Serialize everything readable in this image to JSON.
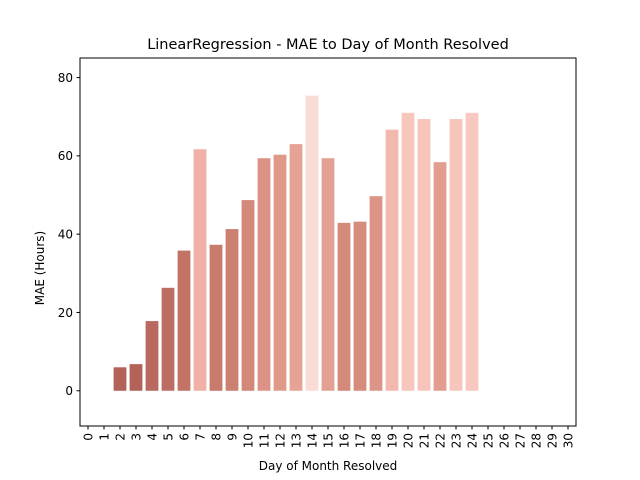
{
  "chart_data": {
    "type": "bar",
    "title": "LinearRegression - MAE to Day of Month Resolved",
    "xlabel": "Day of Month Resolved",
    "ylabel": "MAE (Hours)",
    "xlim": [
      -0.5,
      30.5
    ],
    "ylim": [
      -9,
      85
    ],
    "yticks": [
      0,
      20,
      40,
      60,
      80
    ],
    "xticks": [
      0,
      1,
      2,
      3,
      4,
      5,
      6,
      7,
      8,
      9,
      10,
      11,
      12,
      13,
      14,
      15,
      16,
      17,
      18,
      19,
      20,
      21,
      22,
      23,
      24,
      25,
      26,
      27,
      28,
      29,
      30
    ],
    "bars": [
      {
        "x": 2,
        "value": 6.0,
        "color": "#b36257"
      },
      {
        "x": 3,
        "value": 6.8,
        "color": "#b36257"
      },
      {
        "x": 4,
        "value": 17.8,
        "color": "#b9695d"
      },
      {
        "x": 5,
        "value": 26.3,
        "color": "#bd6e62"
      },
      {
        "x": 6,
        "value": 35.8,
        "color": "#c27366"
      },
      {
        "x": 7,
        "value": 61.7,
        "color": "#efb1a6"
      },
      {
        "x": 8,
        "value": 37.3,
        "color": "#c87b6d"
      },
      {
        "x": 9,
        "value": 41.3,
        "color": "#cc8072"
      },
      {
        "x": 10,
        "value": 48.7,
        "color": "#d38879"
      },
      {
        "x": 11,
        "value": 59.4,
        "color": "#dc9386"
      },
      {
        "x": 12,
        "value": 60.3,
        "color": "#e09989"
      },
      {
        "x": 13,
        "value": 63.0,
        "color": "#e6a294"
      },
      {
        "x": 14,
        "value": 75.4,
        "color": "#fbdcd5"
      },
      {
        "x": 15,
        "value": 59.4,
        "color": "#e3a093"
      },
      {
        "x": 16,
        "value": 42.9,
        "color": "#d48a7b"
      },
      {
        "x": 17,
        "value": 43.2,
        "color": "#d68c7d"
      },
      {
        "x": 18,
        "value": 49.7,
        "color": "#dc9486"
      },
      {
        "x": 19,
        "value": 66.7,
        "color": "#f3b8ae"
      },
      {
        "x": 20,
        "value": 71.0,
        "color": "#f7c6bd"
      },
      {
        "x": 21,
        "value": 69.4,
        "color": "#f6c4bb"
      },
      {
        "x": 22,
        "value": 58.4,
        "color": "#e29d8f"
      },
      {
        "x": 23,
        "value": 69.4,
        "color": "#f6c6bc"
      },
      {
        "x": 24,
        "value": 71.0,
        "color": "#f7c8bf"
      }
    ]
  }
}
